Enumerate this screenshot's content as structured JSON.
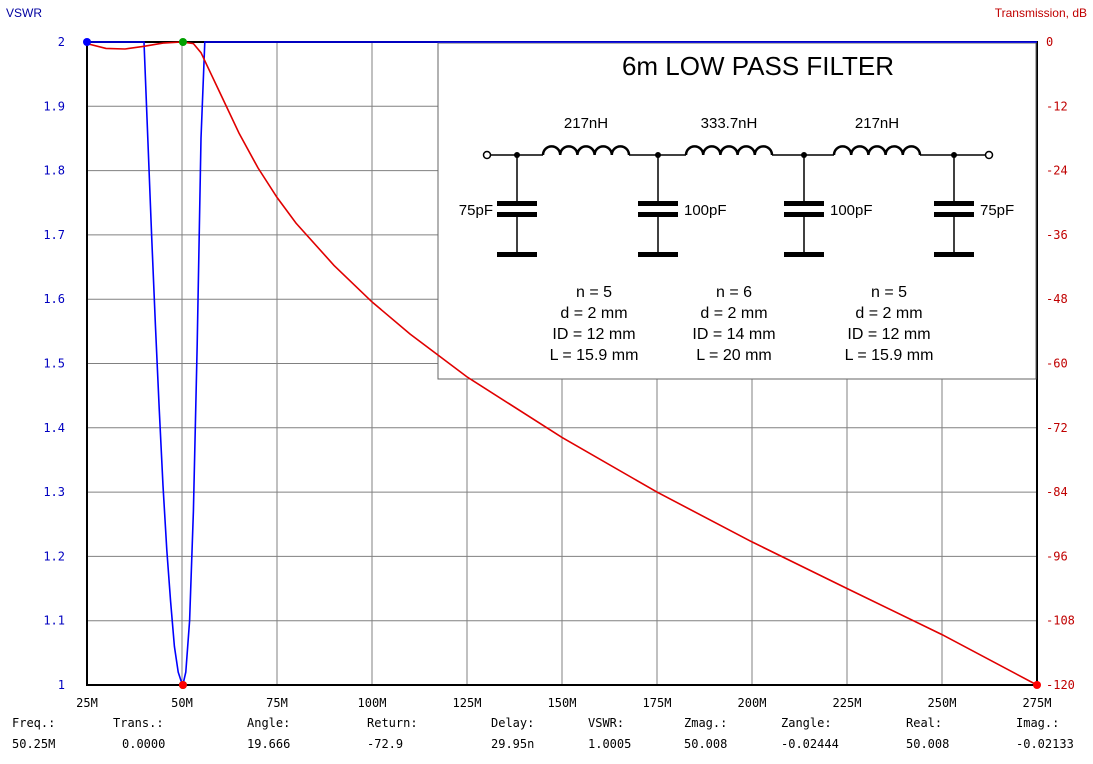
{
  "chart_data": {
    "type": "line",
    "title": "6m LOW PASS FILTER",
    "left_axis": {
      "label": "VSWR",
      "ylim": [
        1,
        2
      ],
      "ticks": [
        "2",
        "1.9",
        "1.8",
        "1.7",
        "1.6",
        "1.5",
        "1.4",
        "1.3",
        "1.2",
        "1.1",
        "1"
      ],
      "color": "#0000c0"
    },
    "right_axis": {
      "label": "Transmission, dB",
      "ylim": [
        -120,
        0
      ],
      "ticks": [
        "0",
        "-12",
        "-24",
        "-36",
        "-48",
        "-60",
        "-72",
        "-84",
        "-96",
        "-108",
        "-120"
      ],
      "color": "#c00000"
    },
    "x_axis": {
      "xlim": [
        25,
        275
      ],
      "ticks": [
        "25M",
        "50M",
        "75M",
        "100M",
        "125M",
        "150M",
        "175M",
        "200M",
        "225M",
        "250M",
        "275M"
      ]
    },
    "grid": true,
    "series": [
      {
        "axis": "left",
        "color": "#0000ff",
        "x": [
          25,
          40,
          41,
          42,
          43,
          44,
          45,
          46,
          47,
          48,
          49,
          50,
          50.25,
          51,
          52,
          53,
          54,
          55,
          56,
          60,
          275
        ],
        "y": [
          2,
          2,
          1.85,
          1.7,
          1.56,
          1.43,
          1.31,
          1.21,
          1.13,
          1.06,
          1.02,
          1.002,
          1.0005,
          1.02,
          1.1,
          1.27,
          1.53,
          1.85,
          2,
          2,
          2
        ]
      },
      {
        "axis": "right",
        "color": "#e00000",
        "x": [
          25,
          30,
          35,
          40,
          45,
          50,
          53,
          55,
          57,
          60,
          65,
          70,
          75,
          80,
          90,
          100,
          110,
          125,
          150,
          175,
          200,
          225,
          250,
          275
        ],
        "y": [
          -0.3,
          -1.2,
          -1.3,
          -0.8,
          -0.2,
          0,
          -0.3,
          -2,
          -5,
          -9.5,
          -17,
          -23.5,
          -29,
          -33.8,
          -41.7,
          -48.5,
          -54.5,
          -62.5,
          -73.8,
          -84,
          -93.3,
          -102,
          -110.6,
          -120
        ]
      }
    ],
    "markers": [
      {
        "x": 25,
        "y": 2,
        "axis": "left",
        "color": "#0000ff"
      },
      {
        "x": 50.25,
        "y": 2,
        "axis": "left",
        "color": "#00a000"
      },
      {
        "x": 50.25,
        "y": 1,
        "axis": "left",
        "color": "#00a000"
      },
      {
        "x": 50.25,
        "y": 1,
        "axis": "left",
        "color": "#ff0000"
      },
      {
        "x": 275,
        "y": 1,
        "axis": "left",
        "color": "#ff0000"
      }
    ],
    "inset": {
      "title": "6m LOW PASS FILTER",
      "inductors": [
        "217nH",
        "333.7nH",
        "217nH"
      ],
      "capacitors": [
        "75pF",
        "100pF",
        "100pF",
        "75pF"
      ],
      "coils": [
        {
          "n": "n = 5",
          "d": "d = 2 mm",
          "id": "ID = 12 mm",
          "l": "L = 15.9 mm"
        },
        {
          "n": "n = 6",
          "d": "d = 2 mm",
          "id": "ID = 14 mm",
          "l": "L = 20 mm"
        },
        {
          "n": "n = 5",
          "d": "d = 2 mm",
          "id": "ID = 12 mm",
          "l": "L = 15.9 mm"
        }
      ]
    }
  },
  "readouts": [
    {
      "label": "Freq.:",
      "value": "50.25M"
    },
    {
      "label": "Trans.:",
      "value": "0.0000"
    },
    {
      "label": "Angle:",
      "value": "19.666"
    },
    {
      "label": "Return:",
      "value": "-72.9"
    },
    {
      "label": "Delay:",
      "value": "29.95n"
    },
    {
      "label": "VSWR:",
      "value": "1.0005"
    },
    {
      "label": "Zmag.:",
      "value": "50.008"
    },
    {
      "label": "Zangle:",
      "value": "-0.02444"
    },
    {
      "label": "Real:",
      "value": "50.008"
    },
    {
      "label": "Imag.:",
      "value": "-0.02133"
    }
  ]
}
